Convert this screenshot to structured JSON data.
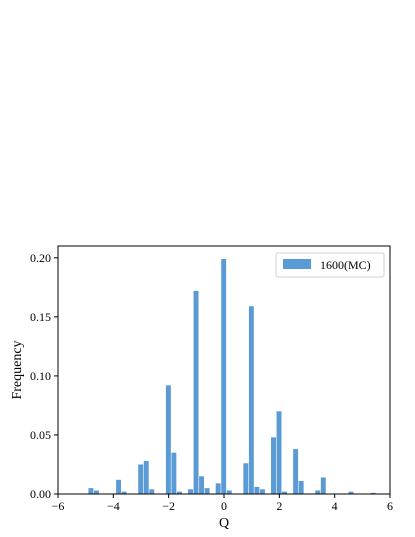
{
  "chart_data": {
    "type": "bar",
    "xlabel": "Q",
    "ylabel": "Frequency",
    "xlim": [
      -6,
      6
    ],
    "ylim": [
      0,
      0.21
    ],
    "x_ticks": [
      -6,
      -4,
      -2,
      0,
      2,
      4,
      6
    ],
    "x_tick_labels": [
      "−6",
      "−4",
      "−2",
      "0",
      "2",
      "4",
      "6"
    ],
    "y_ticks": [
      0,
      0.05,
      0.1,
      0.15,
      0.2
    ],
    "y_tick_labels": [
      "0.00",
      "0.05",
      "0.10",
      "0.15",
      "0.20"
    ],
    "grid": false,
    "legend_position": "top-right",
    "bar_color": "#5b9bd5",
    "series": [
      {
        "name": "1600(MC)",
        "bin_width": 0.2,
        "bins": [
          {
            "x": -4.8,
            "value": 0.005
          },
          {
            "x": -4.6,
            "value": 0.003
          },
          {
            "x": -3.8,
            "value": 0.012
          },
          {
            "x": -3.6,
            "value": 0.002
          },
          {
            "x": -3.0,
            "value": 0.025
          },
          {
            "x": -2.8,
            "value": 0.028
          },
          {
            "x": -2.6,
            "value": 0.004
          },
          {
            "x": -2.0,
            "value": 0.092
          },
          {
            "x": -1.8,
            "value": 0.035
          },
          {
            "x": -1.6,
            "value": 0.002
          },
          {
            "x": -1.2,
            "value": 0.004
          },
          {
            "x": -1.0,
            "value": 0.172
          },
          {
            "x": -0.8,
            "value": 0.015
          },
          {
            "x": -0.6,
            "value": 0.005
          },
          {
            "x": -0.2,
            "value": 0.009
          },
          {
            "x": 0.0,
            "value": 0.199
          },
          {
            "x": 0.2,
            "value": 0.003
          },
          {
            "x": 0.8,
            "value": 0.026
          },
          {
            "x": 1.0,
            "value": 0.159
          },
          {
            "x": 1.2,
            "value": 0.006
          },
          {
            "x": 1.4,
            "value": 0.004
          },
          {
            "x": 1.8,
            "value": 0.048
          },
          {
            "x": 2.0,
            "value": 0.07
          },
          {
            "x": 2.2,
            "value": 0.002
          },
          {
            "x": 2.6,
            "value": 0.038
          },
          {
            "x": 2.8,
            "value": 0.011
          },
          {
            "x": 3.4,
            "value": 0.003
          },
          {
            "x": 3.6,
            "value": 0.014
          },
          {
            "x": 4.6,
            "value": 0.002
          },
          {
            "x": 5.4,
            "value": 0.001
          }
        ]
      }
    ]
  }
}
